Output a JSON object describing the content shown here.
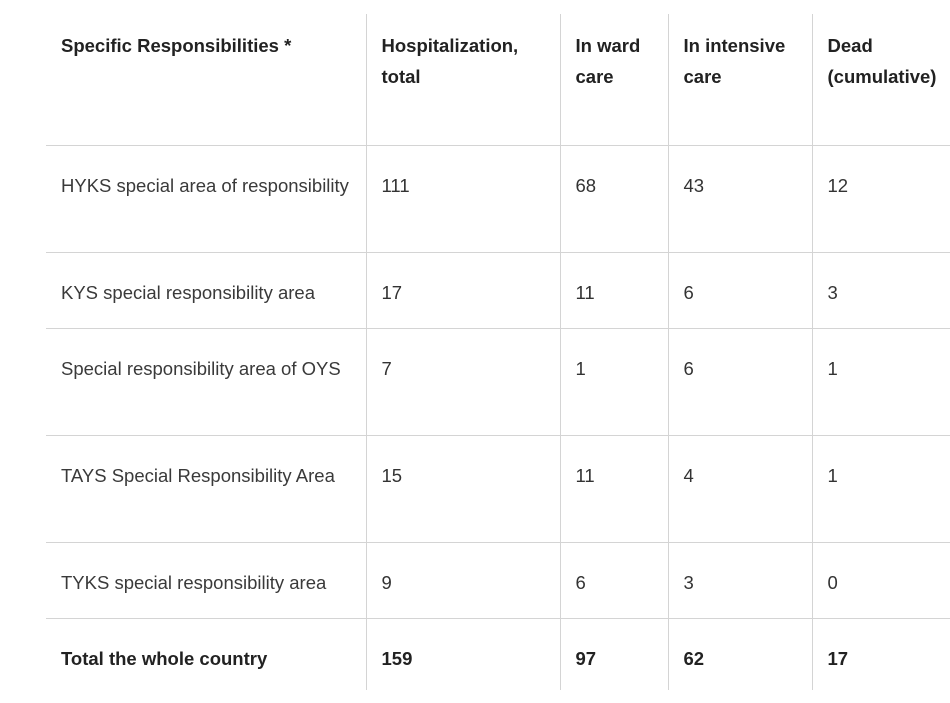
{
  "table": {
    "headers": [
      "Specific Responsibilities *",
      "Hospitalization, total",
      "In ward care",
      "In intensive care",
      "Dead (cumulative)"
    ],
    "rows": [
      {
        "area": "HYKS special area of responsibility",
        "total": "111",
        "ward": "68",
        "intensive": "43",
        "dead": "12"
      },
      {
        "area": "KYS special responsibility area",
        "total": "17",
        "ward": "11",
        "intensive": "6",
        "dead": "3"
      },
      {
        "area": "Special responsibility area of OYS",
        "total": "7",
        "ward": "1",
        "intensive": "6",
        "dead": "1"
      },
      {
        "area": "TAYS Special Responsibility Area",
        "total": "15",
        "ward": "11",
        "intensive": "4",
        "dead": "1"
      },
      {
        "area": "TYKS special responsibility area",
        "total": "9",
        "ward": "6",
        "intensive": "3",
        "dead": "0"
      }
    ],
    "total": {
      "area": "Total the whole country",
      "total": "159",
      "ward": "97",
      "intensive": "62",
      "dead": "17"
    }
  }
}
